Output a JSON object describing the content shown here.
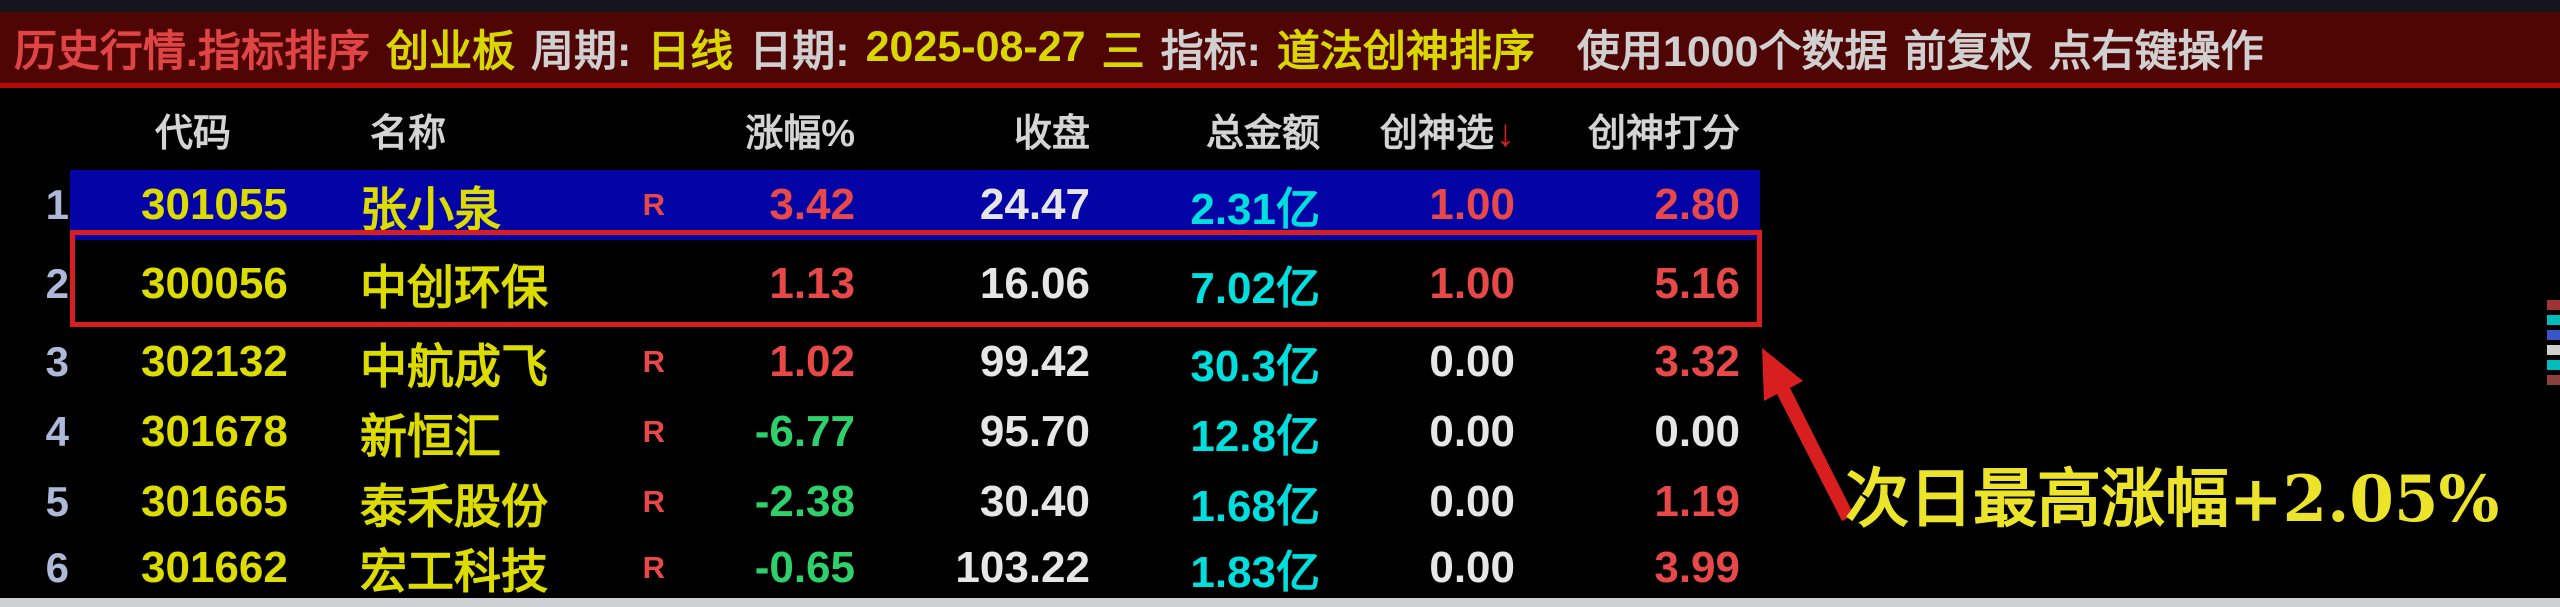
{
  "title_bar": {
    "segments": [
      {
        "text": "历史行情.指标排序",
        "color": "#e04545"
      },
      {
        "text": "创业板",
        "color": "#d8d800"
      },
      {
        "text": "周期:",
        "color": "#d0d0d0"
      },
      {
        "text": "日线",
        "color": "#d8d800"
      },
      {
        "text": "日期:",
        "color": "#d0d0d0"
      },
      {
        "text": "2025-08-27",
        "color": "#d8d800"
      },
      {
        "text": "三",
        "color": "#d8d800"
      },
      {
        "text": "指标:",
        "color": "#d0d0d0"
      },
      {
        "text": "道法创神排序",
        "color": "#d8d800"
      },
      {
        "text": "使用1000个数据",
        "color": "#d0d0d0",
        "gap": true
      },
      {
        "text": "前复权",
        "color": "#d0d0d0"
      },
      {
        "text": "点右键操作",
        "color": "#d0d0d0"
      }
    ]
  },
  "table": {
    "headers": {
      "code": "代码",
      "name": "名称",
      "change": "涨幅%",
      "close": "收盘",
      "amount": "总金额",
      "select": "创神选",
      "score": "创神打分"
    },
    "sort_icon": "↓",
    "rows": [
      {
        "index": "1",
        "code": "301055",
        "name": "张小泉",
        "r": "R",
        "change": "3.42",
        "change_color": "red",
        "close": "24.47",
        "amount": "2.31亿",
        "select": "1.00",
        "select_color": "red",
        "score": "2.80",
        "score_color": "red",
        "selected": true
      },
      {
        "index": "2",
        "code": "300056",
        "name": "中创环保",
        "r": "",
        "change": "1.13",
        "change_color": "red",
        "close": "16.06",
        "amount": "7.02亿",
        "select": "1.00",
        "select_color": "red",
        "score": "5.16",
        "score_color": "red",
        "outlined": true
      },
      {
        "index": "3",
        "code": "302132",
        "name": "中航成飞",
        "r": "R",
        "change": "1.02",
        "change_color": "red",
        "close": "99.42",
        "amount": "30.3亿",
        "select": "0.00",
        "select_color": "white",
        "score": "3.32",
        "score_color": "red"
      },
      {
        "index": "4",
        "code": "301678",
        "name": "新恒汇",
        "r": "R",
        "change": "-6.77",
        "change_color": "green",
        "close": "95.70",
        "amount": "12.8亿",
        "select": "0.00",
        "select_color": "white",
        "score": "0.00",
        "score_color": "white"
      },
      {
        "index": "5",
        "code": "301665",
        "name": "泰禾股份",
        "r": "R",
        "change": "-2.38",
        "change_color": "green",
        "close": "30.40",
        "amount": "1.68亿",
        "select": "0.00",
        "select_color": "white",
        "score": "1.19",
        "score_color": "red"
      },
      {
        "index": "6",
        "code": "301662",
        "name": "宏工科技",
        "r": "R",
        "change": "-0.65",
        "change_color": "green",
        "close": "103.22",
        "amount": "1.83亿",
        "select": "0.00",
        "select_color": "white",
        "score": "3.99",
        "score_color": "red"
      }
    ]
  },
  "annotation": {
    "text": "次日最高涨幅+2.05%",
    "color": "#ece42a",
    "arrow_color": "#d81e1e"
  },
  "colors": {
    "selection_blue": "#0404a6",
    "outline_red": "#d81e1e",
    "value_red": "#e84848",
    "value_green": "#2ed06a",
    "value_cyan": "#00dede",
    "code_yellow": "#dcdc00"
  }
}
